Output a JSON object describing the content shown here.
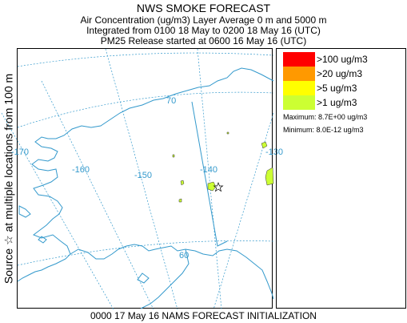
{
  "title": "NWS SMOKE FORECAST",
  "subtitle_lines": [
    "Air Concentration (ug/m3) Layer Average    0 m and  5000 m",
    "Integrated from 0100 18 May to 0200 18 May 16 (UTC)",
    "PM25 Release started at 0600 16 May 16 (UTC)"
  ],
  "side_label": "Source ☆ at multiple locations   from   100 m",
  "map": {
    "longitude_labels": [
      "-170",
      "-160",
      "-150",
      "-140",
      "-130"
    ],
    "latitude_labels": [
      "70",
      "60"
    ],
    "colors": {
      "graticule": "#3399cc",
      "coast": "#3399cc",
      "smoke_light": "#ccff33",
      "source_marker": "#000000"
    }
  },
  "legend": {
    "entries": [
      {
        "label": ">100 ug/m3",
        "color": "#ff0000"
      },
      {
        "label": ">20 ug/m3",
        "color": "#ff9900"
      },
      {
        "label": ">5 ug/m3",
        "color": "#ffff00"
      },
      {
        "label": ">1 ug/m3",
        "color": "#ccff33"
      }
    ],
    "maximum": "Maximum: 8.7E+00 ug/m3",
    "minimum": "Minimum: 8.0E-12 ug/m3"
  },
  "footer": "0000 17 May 16 NAMS FORECAST INITIALIZATION"
}
